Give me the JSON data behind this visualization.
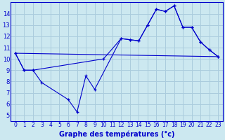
{
  "xlabel": "Graphe des températures (°c)",
  "background_color": "#cce8f0",
  "grid_color": "#aaccdd",
  "line_color": "#0000cc",
  "ylim": [
    4.5,
    15.0
  ],
  "xlim": [
    -0.5,
    23.5
  ],
  "yticks": [
    5,
    6,
    7,
    8,
    9,
    10,
    11,
    12,
    13,
    14
  ],
  "xticks": [
    0,
    1,
    2,
    3,
    4,
    5,
    6,
    7,
    8,
    9,
    10,
    11,
    12,
    13,
    14,
    15,
    16,
    17,
    18,
    19,
    20,
    21,
    22,
    23
  ],
  "series1_hours": [
    0,
    1,
    2,
    3,
    6,
    7,
    8,
    9,
    12,
    13,
    14,
    15,
    16,
    17,
    18,
    19,
    20,
    21,
    22,
    23
  ],
  "series1_temps": [
    10.5,
    9.0,
    9.0,
    7.9,
    6.4,
    5.3,
    8.5,
    7.3,
    11.8,
    11.7,
    11.6,
    13.0,
    14.4,
    14.2,
    14.7,
    12.8,
    12.8,
    11.5,
    10.8,
    10.2
  ],
  "series2_hours": [
    0,
    1,
    2,
    10,
    12,
    13,
    14,
    15,
    16,
    17,
    18,
    19,
    20,
    21,
    22,
    23
  ],
  "series2_temps": [
    10.5,
    9.0,
    9.0,
    10.0,
    11.8,
    11.7,
    11.6,
    13.0,
    14.4,
    14.2,
    14.7,
    12.8,
    12.8,
    11.5,
    10.8,
    10.2
  ],
  "series3_hours": [
    0,
    23
  ],
  "series3_temps": [
    10.5,
    10.2
  ]
}
